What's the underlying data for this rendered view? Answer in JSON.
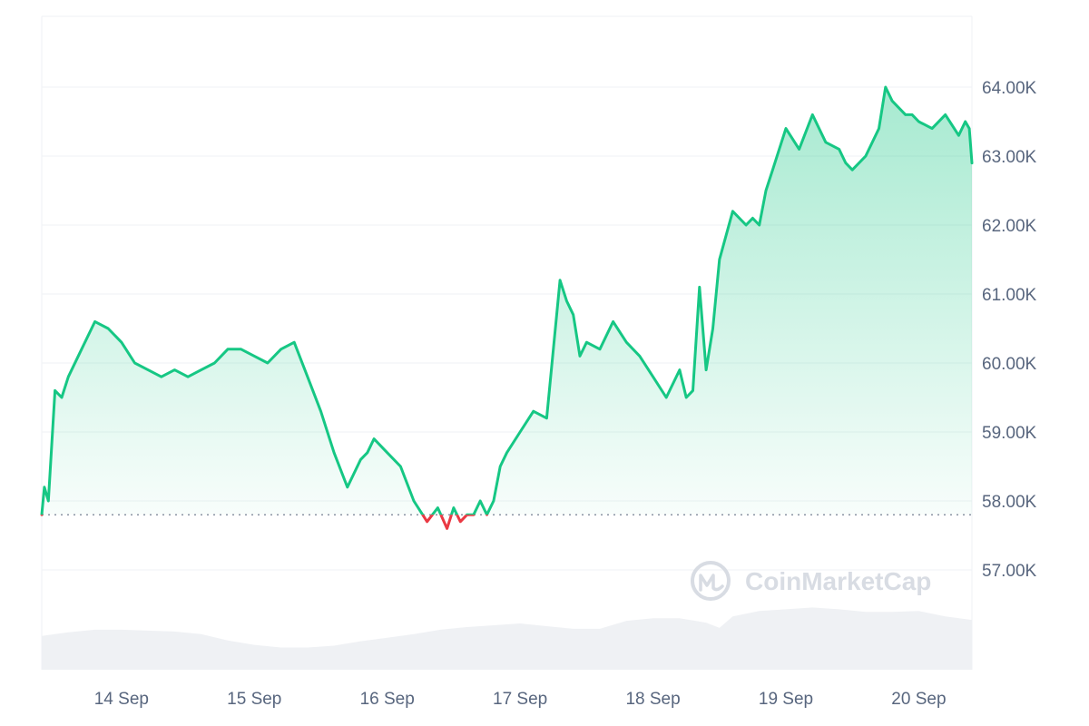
{
  "colors": {
    "up_line": "#16c784",
    "down_line": "#ea3943",
    "grid": "#eff2f5",
    "axis_text": "#58667e",
    "volume_fill": "#eff1f4",
    "baseline": "#8a93a3",
    "watermark": "#d8dce3"
  },
  "watermark": {
    "text": "CoinMarketCap",
    "icon": "coinmarketcap-logo-icon"
  },
  "chart_data": {
    "type": "area",
    "title": "",
    "xlabel": "",
    "ylabel": "",
    "grid": true,
    "x_ticks": [
      "14 Sep",
      "15 Sep",
      "16 Sep",
      "17 Sep",
      "18 Sep",
      "19 Sep",
      "20 Sep"
    ],
    "y_ticks": [
      "57.00K",
      "58.00K",
      "59.00K",
      "60.00K",
      "61.00K",
      "62.00K",
      "63.00K",
      "64.00K"
    ],
    "y_tick_values": [
      57000,
      58000,
      59000,
      60000,
      61000,
      62000,
      63000,
      64000
    ],
    "ylim": [
      55500,
      65000
    ],
    "x_range_days": [
      13.4,
      20.4
    ],
    "baseline_value": 57800,
    "baseline_style": "dotted",
    "price_series": {
      "x": [
        13.4,
        13.42,
        13.45,
        13.5,
        13.55,
        13.6,
        13.7,
        13.8,
        13.9,
        14.0,
        14.1,
        14.2,
        14.3,
        14.4,
        14.5,
        14.6,
        14.7,
        14.8,
        14.9,
        15.0,
        15.1,
        15.2,
        15.3,
        15.4,
        15.5,
        15.6,
        15.7,
        15.75,
        15.8,
        15.85,
        15.9,
        16.0,
        16.1,
        16.2,
        16.3,
        16.38,
        16.45,
        16.5,
        16.55,
        16.6,
        16.65,
        16.7,
        16.75,
        16.8,
        16.85,
        16.9,
        17.0,
        17.1,
        17.2,
        17.3,
        17.35,
        17.4,
        17.45,
        17.5,
        17.6,
        17.7,
        17.8,
        17.9,
        18.0,
        18.1,
        18.2,
        18.25,
        18.3,
        18.35,
        18.4,
        18.45,
        18.5,
        18.6,
        18.7,
        18.75,
        18.8,
        18.85,
        18.9,
        19.0,
        19.1,
        19.2,
        19.3,
        19.4,
        19.45,
        19.5,
        19.6,
        19.7,
        19.75,
        19.8,
        19.9,
        19.95,
        20.0,
        20.1,
        20.2,
        20.3,
        20.35,
        20.38,
        20.4
      ],
      "y": [
        57800,
        58200,
        58000,
        59600,
        59500,
        59800,
        60200,
        60600,
        60500,
        60300,
        60000,
        59900,
        59800,
        59900,
        59800,
        59900,
        60000,
        60200,
        60200,
        60100,
        60000,
        60200,
        60300,
        59800,
        59300,
        58700,
        58200,
        58400,
        58600,
        58700,
        58900,
        58700,
        58500,
        58000,
        57700,
        57900,
        57600,
        57900,
        57700,
        57800,
        57800,
        58000,
        57800,
        58000,
        58500,
        58700,
        59000,
        59300,
        59200,
        61200,
        60900,
        60700,
        60100,
        60300,
        60200,
        60600,
        60300,
        60100,
        59800,
        59500,
        59900,
        59500,
        59600,
        61100,
        59900,
        60500,
        61500,
        62200,
        62000,
        62100,
        62000,
        62500,
        62800,
        63400,
        63100,
        63600,
        63200,
        63100,
        62900,
        62800,
        63000,
        63400,
        64000,
        63800,
        63600,
        63600,
        63500,
        63400,
        63600,
        63300,
        63500,
        63400,
        62900
      ]
    },
    "volume_series": {
      "x": [
        13.4,
        13.6,
        13.8,
        14.0,
        14.2,
        14.4,
        14.6,
        14.8,
        15.0,
        15.2,
        15.4,
        15.6,
        15.8,
        16.0,
        16.2,
        16.4,
        16.6,
        16.8,
        17.0,
        17.2,
        17.4,
        17.6,
        17.8,
        18.0,
        18.2,
        18.4,
        18.5,
        18.6,
        18.8,
        19.0,
        19.2,
        19.4,
        19.6,
        19.8,
        20.0,
        20.2,
        20.4
      ],
      "level": [
        0.38,
        0.42,
        0.45,
        0.45,
        0.44,
        0.43,
        0.4,
        0.33,
        0.28,
        0.25,
        0.25,
        0.27,
        0.32,
        0.36,
        0.4,
        0.45,
        0.48,
        0.5,
        0.52,
        0.49,
        0.46,
        0.46,
        0.55,
        0.58,
        0.58,
        0.53,
        0.47,
        0.6,
        0.66,
        0.68,
        0.7,
        0.68,
        0.65,
        0.65,
        0.66,
        0.6,
        0.56
      ]
    }
  }
}
